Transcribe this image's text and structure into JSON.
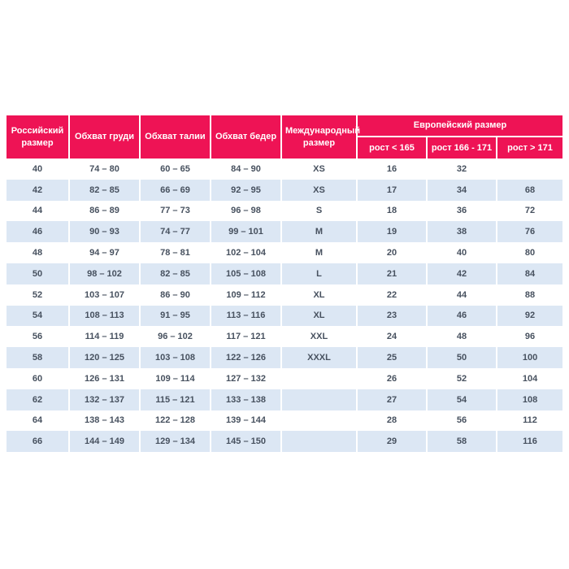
{
  "colors": {
    "header_background": "#ee1355",
    "header_text": "#ffffff",
    "alt_row_background": "#dce7f4",
    "body_text": "#47515f",
    "page_background": "#ffffff"
  },
  "chart_data": {
    "type": "table",
    "title": "",
    "main_headers": [
      "Российский размер",
      "Обхват груди",
      "Обхват талии",
      "Обхват бедер",
      "Международный размер"
    ],
    "group_header": "Европейский размер",
    "sub_headers": [
      "рост < 165",
      "рост 166 - 171",
      "рост > 171"
    ],
    "rows": [
      [
        "40",
        "74 – 80",
        "60 – 65",
        "84 – 90",
        "XS",
        "16",
        "32",
        ""
      ],
      [
        "42",
        "82 – 85",
        "66 – 69",
        "92 – 95",
        "XS",
        "17",
        "34",
        "68"
      ],
      [
        "44",
        "86 – 89",
        "77 – 73",
        "96 – 98",
        "S",
        "18",
        "36",
        "72"
      ],
      [
        "46",
        "90 – 93",
        "74 – 77",
        "99 – 101",
        "M",
        "19",
        "38",
        "76"
      ],
      [
        "48",
        "94 – 97",
        "78 – 81",
        "102 – 104",
        "M",
        "20",
        "40",
        "80"
      ],
      [
        "50",
        "98 – 102",
        "82 – 85",
        "105 – 108",
        "L",
        "21",
        "42",
        "84"
      ],
      [
        "52",
        "103 – 107",
        "86 – 90",
        "109 – 112",
        "XL",
        "22",
        "44",
        "88"
      ],
      [
        "54",
        "108 – 113",
        "91 – 95",
        "113 – 116",
        "XL",
        "23",
        "46",
        "92"
      ],
      [
        "56",
        "114 – 119",
        "96 – 102",
        "117 – 121",
        "XXL",
        "24",
        "48",
        "96"
      ],
      [
        "58",
        "120 – 125",
        "103 – 108",
        "122 – 126",
        "XXXL",
        "25",
        "50",
        "100"
      ],
      [
        "60",
        "126 – 131",
        "109 – 114",
        "127 – 132",
        "",
        "26",
        "52",
        "104"
      ],
      [
        "62",
        "132 – 137",
        "115 – 121",
        "133 – 138",
        "",
        "27",
        "54",
        "108"
      ],
      [
        "64",
        "138 – 143",
        "122 – 128",
        "139 – 144",
        "",
        "28",
        "56",
        "112"
      ],
      [
        "66",
        "144 – 149",
        "129 – 134",
        "145 – 150",
        "",
        "29",
        "58",
        "116"
      ]
    ]
  }
}
